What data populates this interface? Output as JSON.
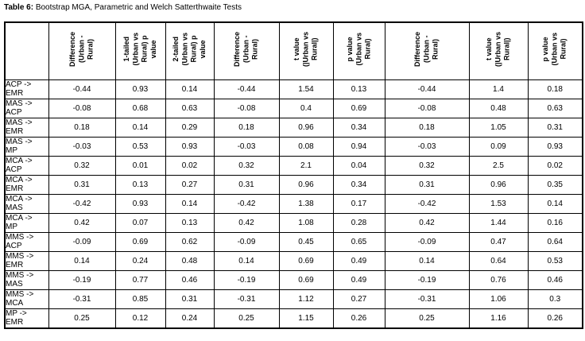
{
  "title": {
    "prefix": "Table 6:",
    "text": " Bootstrap MGA, Parametric and Welch Satterthwaite Tests"
  },
  "colors": {
    "text": "#000000",
    "border": "#000000",
    "background": "#ffffff"
  },
  "table": {
    "corner_label": "",
    "columns": [
      {
        "label": "Difference\n(Urban -\nRural)"
      },
      {
        "label": "1-tailed\n(Urban vs\nRural) p\nvalue"
      },
      {
        "label": "2-tailed\n(Urban vs\nRural) p\nvalue"
      },
      {
        "label": "Difference\n(Urban -\nRural)"
      },
      {
        "label": "t value\n(|Urban vs\nRural|)"
      },
      {
        "label": "p value\n(Urban vs\nRural)"
      },
      {
        "label": "Difference\n(Urban -\nRural)"
      },
      {
        "label": "t value\n(|Urban vs\nRural|)"
      },
      {
        "label": "p value\n(Urban vs\nRural)"
      }
    ],
    "rows": [
      {
        "label": "ACP ->\nEMR",
        "values": [
          "-0.44",
          "0.93",
          "0.14",
          "-0.44",
          "1.54",
          "0.13",
          "-0.44",
          "1.4",
          "0.18"
        ]
      },
      {
        "label": "MAS ->\nACP",
        "values": [
          "-0.08",
          "0.68",
          "0.63",
          "-0.08",
          "0.4",
          "0.69",
          "-0.08",
          "0.48",
          "0.63"
        ]
      },
      {
        "label": "MAS ->\nEMR",
        "values": [
          "0.18",
          "0.14",
          "0.29",
          "0.18",
          "0.96",
          "0.34",
          "0.18",
          "1.05",
          "0.31"
        ]
      },
      {
        "label": "MAS ->\nMP",
        "values": [
          "-0.03",
          "0.53",
          "0.93",
          "-0.03",
          "0.08",
          "0.94",
          "-0.03",
          "0.09",
          "0.93"
        ]
      },
      {
        "label": "MCA ->\nACP",
        "values": [
          "0.32",
          "0.01",
          "0.02",
          "0.32",
          "2.1",
          "0.04",
          "0.32",
          "2.5",
          "0.02"
        ]
      },
      {
        "label": "MCA ->\nEMR",
        "values": [
          "0.31",
          "0.13",
          "0.27",
          "0.31",
          "0.96",
          "0.34",
          "0.31",
          "0.96",
          "0.35"
        ]
      },
      {
        "label": "MCA ->\nMAS",
        "values": [
          "-0.42",
          "0.93",
          "0.14",
          "-0.42",
          "1.38",
          "0.17",
          "-0.42",
          "1.53",
          "0.14"
        ]
      },
      {
        "label": "MCA ->\nMP",
        "values": [
          "0.42",
          "0.07",
          "0.13",
          "0.42",
          "1.08",
          "0.28",
          "0.42",
          "1.44",
          "0.16"
        ]
      },
      {
        "label": "MMS ->\nACP",
        "values": [
          "-0.09",
          "0.69",
          "0.62",
          "-0.09",
          "0.45",
          "0.65",
          "-0.09",
          "0.47",
          "0.64"
        ]
      },
      {
        "label": "MMS ->\nEMR",
        "values": [
          "0.14",
          "0.24",
          "0.48",
          "0.14",
          "0.69",
          "0.49",
          "0.14",
          "0.64",
          "0.53"
        ]
      },
      {
        "label": "MMS ->\nMAS",
        "values": [
          "-0.19",
          "0.77",
          "0.46",
          "-0.19",
          "0.69",
          "0.49",
          "-0.19",
          "0.76",
          "0.46"
        ]
      },
      {
        "label": "MMS ->\nMCA",
        "values": [
          "-0.31",
          "0.85",
          "0.31",
          "-0.31",
          "1.12",
          "0.27",
          "-0.31",
          "1.06",
          "0.3"
        ]
      },
      {
        "label": "MP ->\nEMR",
        "values": [
          "0.25",
          "0.12",
          "0.24",
          "0.25",
          "1.15",
          "0.26",
          "0.25",
          "1.16",
          "0.26"
        ]
      }
    ]
  }
}
